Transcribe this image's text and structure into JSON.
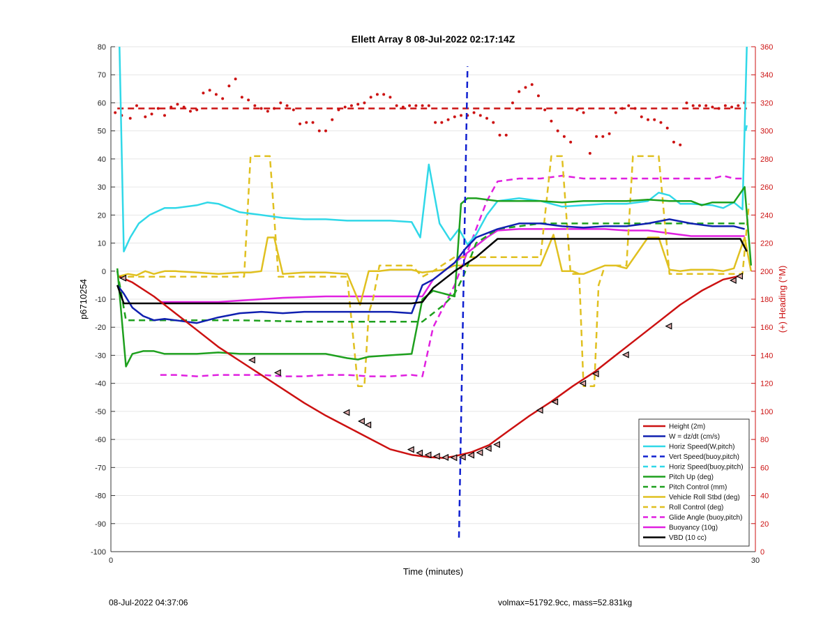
{
  "chart_data": {
    "type": "line",
    "title": "Ellett Array 8 08-Jul-2022 02:17:14Z",
    "xlabel": "Time (minutes)",
    "ylabel": "p6710254",
    "y2label": "(+) Heading (°M)",
    "xlim": [
      0,
      30
    ],
    "ylim": [
      -100,
      80
    ],
    "y2lim": [
      0,
      360
    ],
    "x_ticks": [
      "0",
      "30"
    ],
    "y_ticks": [
      80,
      70,
      60,
      50,
      40,
      30,
      20,
      10,
      0,
      -10,
      -20,
      -30,
      -40,
      -50,
      -60,
      -70,
      -80,
      -90,
      -100
    ],
    "y2_ticks": [
      360,
      340,
      320,
      300,
      280,
      260,
      240,
      220,
      200,
      180,
      160,
      140,
      120,
      100,
      80,
      60,
      40,
      20,
      0
    ],
    "grid": "horizontal",
    "legend_position": "bottom-right",
    "series": [
      {
        "name": "Height (2m)",
        "color": "#cc1111",
        "style": "solid",
        "axis": "left",
        "x": [
          0.4,
          1.0,
          2.0,
          3.0,
          4.0,
          5.0,
          6.0,
          7.0,
          8.0,
          9.0,
          10.0,
          11.0,
          12.0,
          13.0,
          14.0,
          14.8,
          15.5,
          16.0,
          16.8,
          17.6,
          18.5,
          19.5,
          20.5,
          21.5,
          22.5,
          23.5,
          24.5,
          25.5,
          26.5,
          27.5,
          28.5,
          29.4
        ],
        "y": [
          -2,
          -4,
          -9,
          -15,
          -21,
          -27,
          -32,
          -37,
          -42,
          -47,
          -51.5,
          -55.5,
          -59.5,
          -63.5,
          -65.5,
          -66.3,
          -66.6,
          -66,
          -64.5,
          -62,
          -57,
          -51.5,
          -46.5,
          -41,
          -36,
          -30,
          -24,
          -18,
          -12,
          -7,
          -3,
          -1.5
        ]
      },
      {
        "name": "W = dz/dt (cm/s)",
        "color": "#1020b0",
        "style": "solid",
        "axis": "left",
        "x": [
          0.3,
          0.6,
          1.0,
          1.5,
          2.0,
          2.5,
          3.0,
          4.0,
          5.0,
          6.0,
          7.0,
          8.0,
          9.0,
          10.0,
          11.0,
          12.0,
          13.0,
          14.0,
          14.5,
          15.0,
          15.5,
          16.0,
          16.5,
          17.0,
          18.0,
          19.0,
          20.0,
          21.0,
          22.0,
          23.0,
          24.0,
          25.0,
          26.0,
          27.0,
          28.0,
          29.0,
          29.5
        ],
        "y": [
          -5,
          -8,
          -13,
          -16,
          -17.5,
          -17,
          -17.5,
          -18.5,
          -16.5,
          -15,
          -14.5,
          -15,
          -14.5,
          -14.5,
          -14.5,
          -14.5,
          -14.5,
          -15,
          -5,
          -3,
          0,
          3,
          8,
          12,
          15,
          17,
          17,
          16,
          15.5,
          16,
          16,
          17,
          18.5,
          17,
          16,
          16,
          15
        ]
      },
      {
        "name": "Horiz Speed(W,pitch)",
        "color": "#30d8e8",
        "style": "solid",
        "axis": "left",
        "x": [
          0.4,
          0.6,
          0.9,
          1.3,
          1.8,
          2.5,
          3.0,
          4.0,
          4.5,
          5.0,
          6.0,
          7.0,
          8.0,
          9.0,
          10.0,
          11.0,
          12.0,
          13.0,
          14.0,
          14.4,
          14.8,
          15.3,
          15.8,
          16.2,
          16.6,
          17.0,
          17.5,
          18.0,
          19.0,
          20.0,
          21.0,
          22.0,
          23.0,
          24.0,
          25.0,
          25.5,
          26.0,
          26.5,
          27.0,
          28.0,
          28.5,
          29.0,
          29.4,
          29.6
        ],
        "y": [
          80,
          7,
          12,
          17,
          20,
          22.5,
          22.5,
          23.5,
          24.5,
          24,
          21,
          20,
          19,
          18.5,
          18.5,
          18,
          18,
          18,
          17.5,
          12,
          38,
          17,
          11,
          15,
          9.5,
          13,
          20,
          25,
          26,
          25,
          23,
          23.5,
          24,
          24,
          25,
          28,
          27,
          24,
          24,
          23.5,
          22.5,
          24.5,
          22,
          80
        ]
      },
      {
        "name": "Vert Speed(buoy,pitch)",
        "color": "#1020d0",
        "style": "dashed",
        "axis": "left",
        "x": [
          16.2,
          16.6
        ],
        "y": [
          -95,
          73
        ]
      },
      {
        "name": "Horiz Speed(buoy,pitch)",
        "color": "#30d8e8",
        "style": "dashed",
        "axis": "left",
        "x": [
          29.55,
          29.6
        ],
        "y": [
          50,
          52
        ]
      },
      {
        "name": "Pitch Up (deg)",
        "color": "#1ea01e",
        "style": "solid",
        "axis": "left",
        "x": [
          0.3,
          0.7,
          1.0,
          1.5,
          2.0,
          2.5,
          3.0,
          4.0,
          5.0,
          6.0,
          7.0,
          8.0,
          9.0,
          10.0,
          11.0,
          11.5,
          12.0,
          13.0,
          14.0,
          14.5,
          15.0,
          15.5,
          16.0,
          16.3,
          16.6,
          17.0,
          17.5,
          18.0,
          19.0,
          20.0,
          21.0,
          22.0,
          23.0,
          24.0,
          25.0,
          26.0,
          27.0,
          27.5,
          28.0,
          29.0,
          29.5,
          29.8
        ],
        "y": [
          1,
          -34,
          -29.5,
          -28.5,
          -28.5,
          -29.5,
          -29.5,
          -29.5,
          -29,
          -29.5,
          -29.5,
          -29.5,
          -29.5,
          -29.5,
          -31,
          -31.5,
          -30.5,
          -30,
          -29.5,
          -10,
          -7,
          -8,
          -9,
          24,
          26,
          26,
          25.5,
          25,
          25,
          25,
          24.5,
          25,
          25,
          25,
          25.5,
          25,
          25,
          23.5,
          24.5,
          24.5,
          30,
          2
        ]
      },
      {
        "name": "Pitch Control (mm)",
        "color": "#1ea01e",
        "style": "dashed",
        "axis": "left",
        "x": [
          0.3,
          0.7,
          3.0,
          6.0,
          9.0,
          12.0,
          14.0,
          14.5,
          15.0,
          15.5,
          16.0,
          16.4,
          17.0,
          18.0,
          19.0,
          20.0,
          25.0,
          29.0,
          29.5
        ],
        "y": [
          0,
          -17.5,
          -17.5,
          -17.5,
          -18,
          -18,
          -18,
          -18,
          -15,
          -12,
          -8,
          -2,
          10,
          15,
          16,
          17,
          17,
          17,
          17
        ]
      },
      {
        "name": "Vehicle Roll Stbd (deg)",
        "color": "#e0c020",
        "style": "solid",
        "axis": "left",
        "x": [
          0.3,
          0.8,
          1.2,
          1.6,
          2.0,
          2.5,
          3.0,
          4.0,
          5.0,
          6.0,
          6.5,
          7.0,
          7.3,
          7.6,
          8.0,
          9.0,
          10.0,
          11.0,
          11.6,
          12.0,
          12.5,
          13.0,
          14.0,
          14.5,
          15.0,
          15.5,
          16.0,
          17.0,
          18.0,
          19.0,
          20.0,
          20.6,
          21.0,
          21.5,
          21.8,
          22.0,
          23.0,
          23.5,
          24.0,
          25.0,
          25.5,
          26.0,
          26.5,
          27.0,
          28.0,
          28.5,
          29.0,
          29.5,
          29.8
        ],
        "y": [
          -2,
          -1,
          -1.5,
          0,
          -1,
          0,
          0,
          -0.5,
          -1,
          -0.5,
          -0.5,
          0,
          12,
          12,
          -1,
          -0.5,
          -0.5,
          -1,
          -12,
          0,
          0,
          0.5,
          0.5,
          -0.5,
          0,
          0.5,
          2,
          2,
          2,
          2,
          2,
          13,
          0,
          0,
          -1,
          -1,
          2,
          2,
          1,
          12,
          12,
          0.5,
          0,
          0.5,
          0.5,
          0,
          1,
          12,
          0
        ]
      },
      {
        "name": "Roll Control (deg)",
        "color": "#e0c020",
        "style": "dashed",
        "axis": "left",
        "x": [
          0.3,
          2.0,
          5.0,
          6.2,
          6.5,
          7.0,
          7.4,
          7.8,
          8.0,
          10.0,
          11.0,
          11.5,
          11.8,
          12.0,
          12.2,
          12.5,
          13.0,
          14.0,
          14.5,
          15.0,
          16.0,
          17.0,
          18.0,
          19.0,
          20.0,
          20.5,
          21.0,
          21.4,
          21.8,
          22.0,
          22.5,
          22.7,
          23.0,
          24.0,
          24.3,
          24.6,
          25.0,
          25.5,
          26.0,
          26.5,
          27.0,
          28.0,
          29.0,
          29.4,
          29.7
        ],
        "y": [
          -2,
          -2,
          -2,
          -2,
          41,
          41,
          41,
          -2,
          -2,
          -2,
          -2,
          -41,
          -41,
          -15,
          -10,
          2,
          2,
          2,
          -2,
          0,
          5,
          5,
          5,
          5,
          5,
          41,
          41,
          -1,
          -1,
          -41,
          -41,
          -5,
          2,
          2,
          41,
          41,
          41,
          41,
          -1,
          -1,
          -1,
          -1,
          -1,
          -1,
          24
        ]
      },
      {
        "name": "Glide Angle (buoy,pitch)",
        "color": "#e020e0",
        "style": "dashed",
        "axis": "left",
        "x": [
          2.3,
          3.0,
          4.0,
          5.0,
          6.0,
          7.0,
          8.0,
          9.0,
          10.0,
          11.0,
          12.0,
          13.0,
          14.0,
          14.5,
          15.0,
          16.0,
          16.5,
          17.0,
          17.5,
          18.0,
          19.0,
          20.0,
          21.0,
          22.0,
          23.0,
          24.0,
          25.0,
          26.0,
          27.0,
          28.0,
          28.5,
          29.0,
          29.5
        ],
        "y": [
          -37,
          -37,
          -37.5,
          -37,
          -37,
          -37,
          -37.5,
          -37.5,
          -37,
          -37,
          -37.5,
          -37.5,
          -37,
          -37.5,
          -20,
          -5,
          5,
          15,
          25,
          32,
          33,
          33,
          34,
          33,
          33,
          33,
          33,
          33,
          33,
          33,
          34,
          33,
          33
        ]
      },
      {
        "name": "Buoyancy (10g)",
        "color": "#e020e0",
        "style": "solid",
        "axis": "left",
        "x": [
          2.3,
          4.0,
          5.0,
          6.0,
          8.0,
          10.0,
          12.0,
          13.0,
          14.0,
          14.5,
          15.0,
          15.5,
          16.0,
          16.5,
          17.0,
          17.5,
          18.0,
          19.0,
          20.0,
          21.0,
          22.0,
          23.0,
          24.0,
          25.0,
          26.0,
          27.0,
          28.0,
          29.0,
          29.5
        ],
        "y": [
          -11,
          -11,
          -11,
          -10.5,
          -9.5,
          -9,
          -9,
          -9,
          -9,
          -9,
          -3,
          0,
          3,
          6,
          9,
          12,
          14.5,
          15,
          15,
          15,
          15,
          15,
          14.5,
          14.5,
          13.5,
          12.5,
          12.5,
          12.5,
          12.5
        ]
      },
      {
        "name": "VBD (10 cc)",
        "color": "#000000",
        "style": "solid",
        "axis": "left",
        "x": [
          0.3,
          0.6,
          3.0,
          6.0,
          9.0,
          12.0,
          14.0,
          14.5,
          15.0,
          16.0,
          17.0,
          18.0,
          19.0,
          20.0,
          22.0,
          25.0,
          28.0,
          29.3,
          29.6
        ],
        "y": [
          -5,
          -11.5,
          -11.5,
          -11.5,
          -11.5,
          -11.5,
          -11.5,
          -11,
          -6,
          0,
          5,
          11.5,
          11.5,
          11.5,
          11.5,
          11.5,
          11.5,
          11.5,
          7
        ]
      },
      {
        "name": "Heading target",
        "color": "#cc1111",
        "style": "dashed",
        "axis": "right",
        "legend": false,
        "x": [
          0.3,
          29.6
        ],
        "y": [
          316,
          316
        ]
      },
      {
        "name": "Heading",
        "color": "#cc1111",
        "style": "dots",
        "axis": "right",
        "legend": false,
        "x": [
          0.2,
          0.5,
          0.9,
          1.2,
          1.6,
          1.9,
          2.2,
          2.5,
          2.8,
          3.1,
          3.4,
          3.7,
          4.0,
          4.3,
          4.6,
          4.9,
          5.2,
          5.5,
          5.8,
          6.1,
          6.4,
          6.7,
          7.0,
          7.3,
          7.6,
          7.9,
          8.2,
          8.5,
          8.8,
          9.1,
          9.4,
          9.7,
          10.0,
          10.3,
          10.6,
          10.9,
          11.2,
          11.5,
          11.8,
          12.1,
          12.4,
          12.7,
          13.0,
          13.3,
          13.6,
          13.9,
          14.2,
          14.5,
          14.8,
          15.1,
          15.4,
          15.7,
          16.0,
          16.3,
          16.6,
          16.9,
          17.2,
          17.5,
          17.8,
          18.1,
          18.4,
          18.7,
          19.0,
          19.3,
          19.6,
          19.9,
          20.2,
          20.5,
          20.8,
          21.1,
          21.4,
          21.7,
          22.0,
          22.3,
          22.6,
          22.9,
          23.2,
          23.5,
          23.8,
          24.1,
          24.4,
          24.7,
          25.0,
          25.3,
          25.6,
          25.9,
          26.2,
          26.5,
          26.8,
          27.1,
          27.4,
          27.7,
          28.0,
          28.3,
          28.6,
          28.9,
          29.2,
          29.5
        ],
        "y": [
          313,
          311,
          309,
          318,
          310,
          312,
          316,
          311,
          317,
          319,
          317,
          314,
          315,
          327,
          329,
          326,
          323,
          332,
          337,
          324,
          322,
          318,
          316,
          314,
          316,
          320,
          318,
          315,
          305,
          306,
          306,
          300,
          300,
          308,
          315,
          317,
          318,
          319,
          320,
          324,
          326,
          326,
          324,
          318,
          317,
          318,
          318,
          318,
          318,
          306,
          306,
          308,
          310,
          311,
          311,
          313,
          311,
          309,
          306,
          297,
          297,
          320,
          328,
          331,
          333,
          325,
          315,
          307,
          300,
          296,
          292,
          315,
          313,
          284,
          296,
          296,
          298,
          313,
          316,
          318,
          316,
          310,
          308,
          308,
          306,
          302,
          292,
          290,
          320,
          318,
          318,
          318,
          317,
          316,
          318,
          317,
          318,
          320
        ]
      },
      {
        "name": "Waypoint markers",
        "color": "#000000",
        "style": "triangles",
        "axis": "left",
        "legend": false,
        "x": [
          0.6,
          6.6,
          7.8,
          11.0,
          11.7,
          12.0,
          14.0,
          14.4,
          14.8,
          15.2,
          15.6,
          16.0,
          16.4,
          16.8,
          17.2,
          17.6,
          18.0,
          20.0,
          20.7,
          22.0,
          22.6,
          24.0,
          26.0,
          29.0,
          29.3
        ],
        "y": [
          -2.5,
          -31.7,
          -36.2,
          -50.4,
          -53.5,
          -54.8,
          -63.6,
          -64.8,
          -65.5,
          -66,
          -66.4,
          -66.5,
          -66.3,
          -65.6,
          -64.7,
          -63.2,
          -61.8,
          -49.6,
          -46.6,
          -40,
          -36.6,
          -29.8,
          -19.6,
          -3.3,
          -1.8
        ]
      }
    ]
  },
  "footer": {
    "left": "08-Jul-2022 04:37:06",
    "right": "volmax=51792.9cc, mass=52.831kg"
  }
}
